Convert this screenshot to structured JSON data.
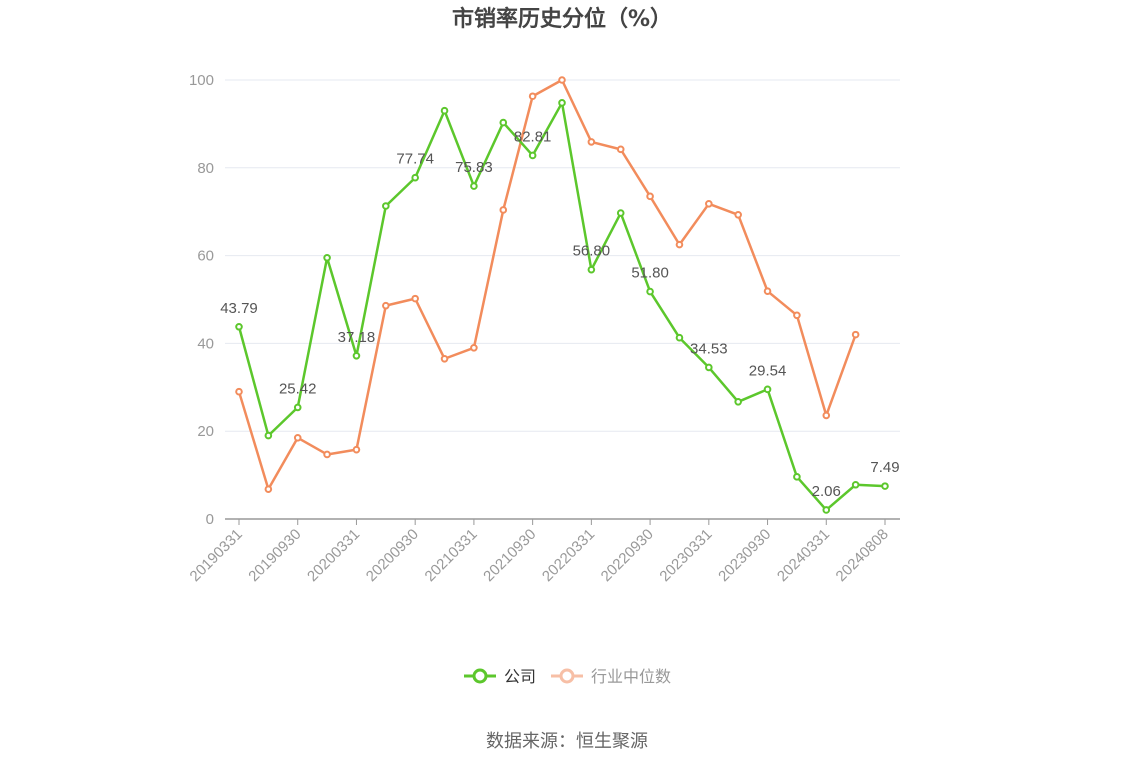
{
  "chart_data": {
    "type": "line",
    "title": "市销率历史分位（%）",
    "ylim": [
      0,
      100
    ],
    "y_ticks": [
      0,
      20,
      40,
      60,
      80,
      100
    ],
    "x_tick_labels": [
      "20190331",
      "20190930",
      "20200331",
      "20200930",
      "20210331",
      "20210930",
      "20220331",
      "20220930",
      "20230331",
      "20230930",
      "20240331",
      "20240808"
    ],
    "x": [
      "20190331",
      "20190630",
      "20190930",
      "20191231",
      "20200331",
      "20200630",
      "20200930",
      "20201231",
      "20210331",
      "20210630",
      "20210930",
      "20211231",
      "20220331",
      "20220630",
      "20220930",
      "20221231",
      "20230331",
      "20230630",
      "20230930",
      "20231231",
      "20240331",
      "20240630",
      "20240808"
    ],
    "grid": true,
    "legend_position": "bottom",
    "series": [
      {
        "name": "公司",
        "color": "#5cc72c",
        "values": [
          43.79,
          19.0,
          25.42,
          59.5,
          37.18,
          71.3,
          77.74,
          93.0,
          75.83,
          90.3,
          82.81,
          94.8,
          56.8,
          69.7,
          51.8,
          41.3,
          34.53,
          26.7,
          29.54,
          9.6,
          2.06,
          7.8,
          7.49
        ],
        "labels": {
          "0": "43.79",
          "2": "25.42",
          "4": "37.18",
          "6": "77.74",
          "8": "75.83",
          "10": "82.81",
          "12": "56.80",
          "14": "51.80",
          "16": "34.53",
          "18": "29.54",
          "20": "2.06",
          "22": "7.49"
        }
      },
      {
        "name": "行业中位数",
        "color": "#f28c5c",
        "values": [
          29.0,
          6.8,
          18.5,
          14.7,
          15.8,
          48.6,
          50.2,
          36.5,
          39.0,
          70.4,
          96.3,
          100.0,
          85.9,
          84.2,
          73.5,
          62.5,
          71.8,
          69.3,
          51.9,
          46.4,
          23.6,
          42.0,
          null
        ]
      }
    ]
  },
  "source_text": "数据来源：恒生聚源"
}
